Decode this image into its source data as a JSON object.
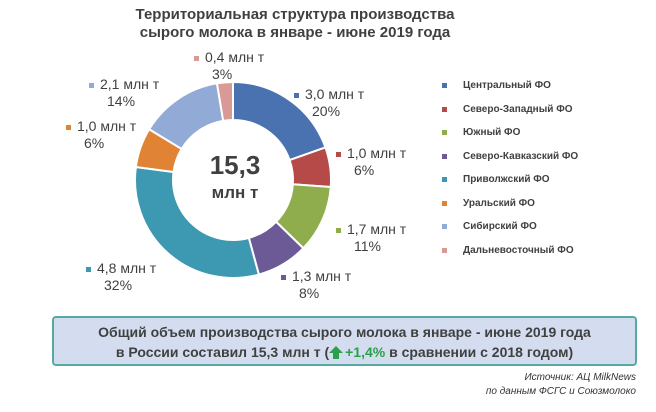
{
  "chart_data": {
    "type": "pie",
    "title": [
      "Территориальная структура производства",
      "сырого молока в январе - июне 2019 года"
    ],
    "center_value": "15,3",
    "center_unit": "млн т",
    "series": [
      {
        "name": "Центральный ФО",
        "value": 3.0,
        "value_label": "3,0 млн т",
        "percent_label": "20%",
        "color": "#4a72b0"
      },
      {
        "name": "Северо-Западный ФО",
        "value": 1.0,
        "value_label": "1,0 млн т",
        "percent_label": "6%",
        "color": "#b54a48"
      },
      {
        "name": "Южный ФО",
        "value": 1.7,
        "value_label": "1,7 млн т",
        "percent_label": "11%",
        "color": "#8fad4c"
      },
      {
        "name": "Северо-Кавказский ФО",
        "value": 1.3,
        "value_label": "1,3 млн т",
        "percent_label": "8%",
        "color": "#6b5a96"
      },
      {
        "name": "Приволжский ФО",
        "value": 4.8,
        "value_label": "4,8 млн т",
        "percent_label": "32%",
        "color": "#3d99b2"
      },
      {
        "name": "Уральский ФО",
        "value": 1.0,
        "value_label": "1,0 млн т",
        "percent_label": "6%",
        "color": "#e08334"
      },
      {
        "name": "Сибирский ФО",
        "value": 2.1,
        "value_label": "2,1 млн т",
        "percent_label": "14%",
        "color": "#92aad6"
      },
      {
        "name": "Дальневосточный ФО",
        "value": 0.4,
        "value_label": "0,4 млн т",
        "percent_label": "3%",
        "color": "#d99a97"
      }
    ],
    "legend_position": "right"
  },
  "summary": {
    "line1": "Общий объем производства сырого молока в январе - июне 2019 года",
    "line2_prefix": "в России составил 15,3 млн т (",
    "growth": "+1,4%",
    "line2_suffix": " в сравнении с 2018 годом)",
    "growth_icon": "up-arrow-icon",
    "growth_color": "#2aa04a",
    "border_color": "#57a9a4",
    "background_color": "#d4ddef"
  },
  "source": {
    "line1": "Источник: АЦ MilkNews",
    "line2": "по данным ФСГС и Союзмолоко"
  }
}
